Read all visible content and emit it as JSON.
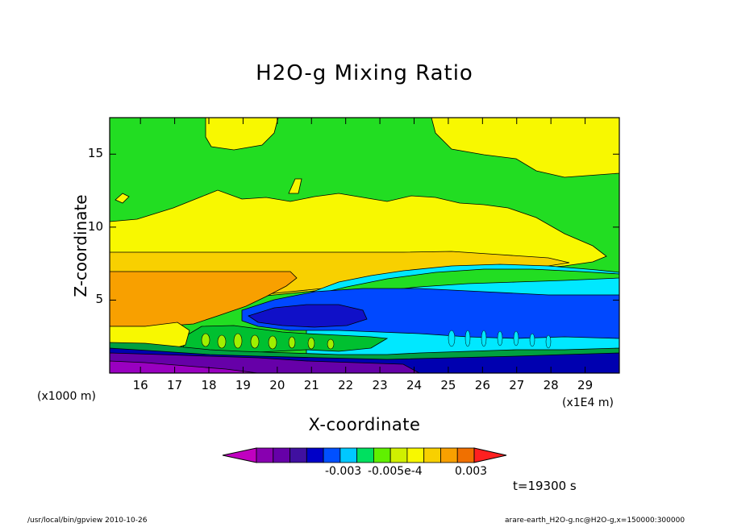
{
  "chart_data": {
    "type": "contour",
    "title": "H2O-g Mixing Ratio",
    "xlabel": "X-coordinate",
    "ylabel": "Z-coordinate",
    "x_unit": "(x1E4 m)",
    "y_unit": "(x1000 m)",
    "xlim": [
      15.1,
      30
    ],
    "ylim": [
      0,
      17.5
    ],
    "x_ticks": [
      "16",
      "17",
      "18",
      "19",
      "20",
      "21",
      "22",
      "23",
      "24",
      "25",
      "26",
      "27",
      "28",
      "29"
    ],
    "y_ticks": [
      "5",
      "10",
      "15"
    ],
    "colorbar": {
      "colors": [
        "#c000c0",
        "#8800b0",
        "#6600a8",
        "#4010a0",
        "#0000c8",
        "#0050ff",
        "#00c8ff",
        "#00e060",
        "#60f000",
        "#d0f000",
        "#f8f800",
        "#f8d000",
        "#f8a000",
        "#f07000",
        "#ff2020"
      ],
      "labels": [
        "-0.003",
        "-0.005e-4",
        "0.003"
      ]
    },
    "time": "t=19300 s"
  },
  "footer": {
    "left": "/usr/local/bin/gpview  2010-10-26",
    "right": "arare-earth_H2O-g.nc@H2O-g,x=150000:300000"
  }
}
